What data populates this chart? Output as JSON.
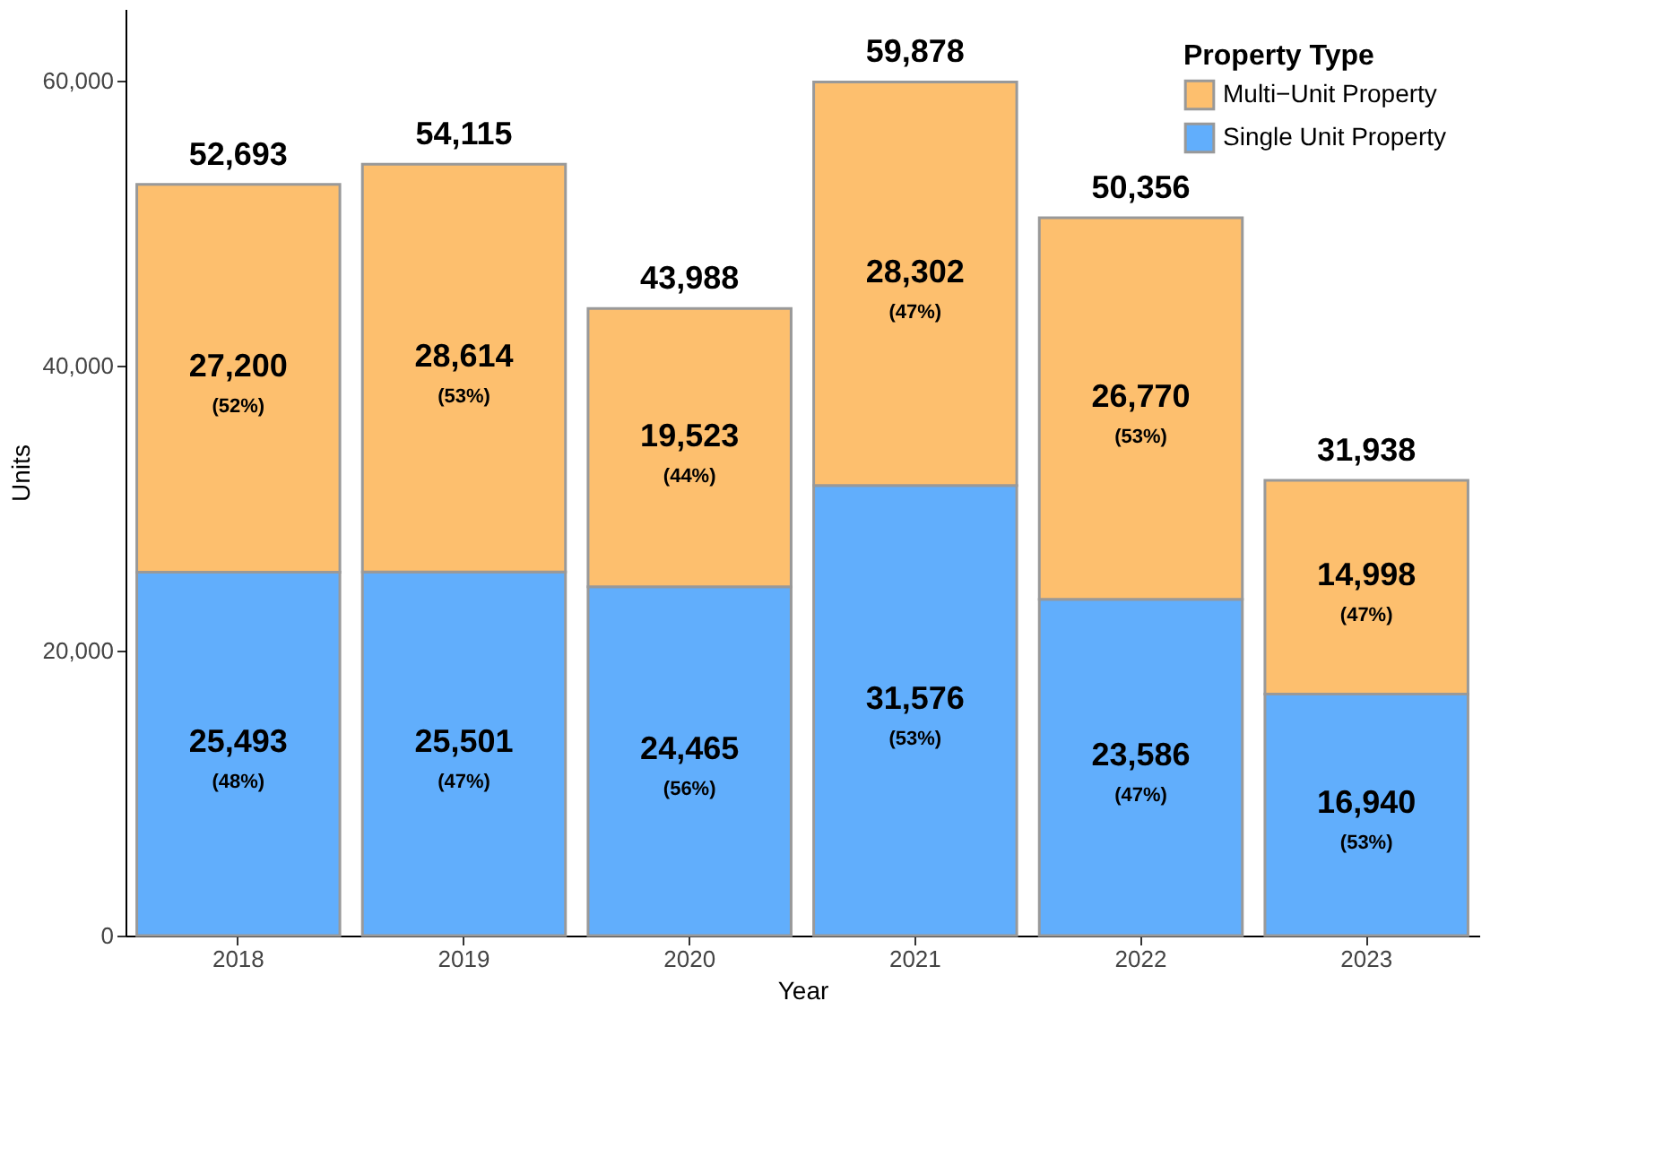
{
  "chart_data": {
    "type": "bar",
    "stacked": true,
    "xlabel": "Year",
    "ylabel": "Units",
    "legend_title": "Property Type",
    "legend": "top right",
    "grid": false,
    "categories": [
      "2018",
      "2019",
      "2020",
      "2021",
      "2022",
      "2023"
    ],
    "ylim": [
      0,
      65000
    ],
    "yticks": [
      {
        "value": 0,
        "label": "0"
      },
      {
        "value": 20000,
        "label": "20,000"
      },
      {
        "value": 40000,
        "label": "40,000"
      },
      {
        "value": 60000,
        "label": "60,000"
      }
    ],
    "series": [
      {
        "name": "Single Unit Property",
        "color": "#61aefc",
        "values": [
          25493,
          25501,
          24465,
          31576,
          23586,
          16940
        ],
        "value_labels": [
          "25,493\n(48%)",
          "25,501\n(47%)",
          "24,465\n(56%)",
          "31,576\n(53%)",
          "23,586\n(47%)",
          "16,940\n(53%)"
        ]
      },
      {
        "name": "Multi−Unit Property",
        "color": "#fdbf6e",
        "values": [
          27200,
          28614,
          19523,
          28302,
          26770,
          14998
        ],
        "value_labels": [
          "27,200\n(52%)",
          "28,614\n(53%)",
          "19,523\n(44%)",
          "28,302\n(47%)",
          "26,770\n(53%)",
          "14,998\n(47%)"
        ]
      }
    ],
    "totals": [
      "52,693",
      "54,115",
      "43,988",
      "59,878",
      "50,356",
      "31,938"
    ]
  }
}
